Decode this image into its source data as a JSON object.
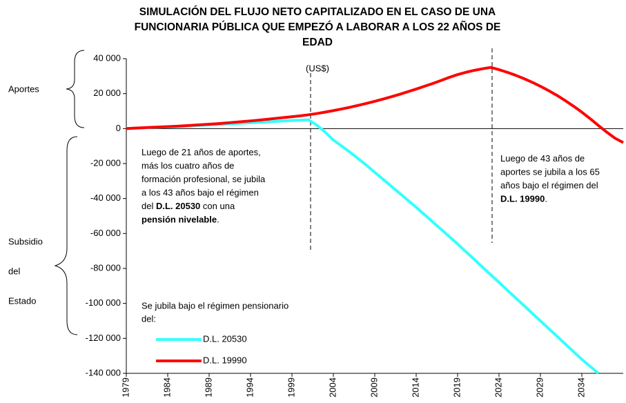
{
  "chart_data": {
    "type": "line",
    "title": [
      "SIMULACIÓN DEL FLUJO NETO CAPITALIZADO EN EL CASO DE UNA",
      "FUNCIONARIA PÚBLICA QUE EMPEZÓ A LABORAR A LOS 22 AÑOS DE",
      "EDAD"
    ],
    "subtitle": "(US$)",
    "side_labels": {
      "top": "Aportes",
      "bottom": [
        "Subsidio",
        "del",
        "Estado"
      ]
    },
    "x": [
      1979,
      1980,
      1981,
      1982,
      1983,
      1984,
      1985,
      1986,
      1987,
      1988,
      1989,
      1990,
      1991,
      1992,
      1993,
      1994,
      1995,
      1996,
      1997,
      1998,
      1999,
      2000,
      2001,
      2002,
      2003,
      2004,
      2005,
      2006,
      2007,
      2008,
      2009,
      2010,
      2011,
      2012,
      2013,
      2014,
      2015,
      2016,
      2017,
      2018,
      2019,
      2020,
      2021,
      2022,
      2023,
      2024,
      2025,
      2026,
      2027,
      2028,
      2029,
      2030,
      2031,
      2032,
      2033,
      2034,
      2035,
      2036,
      2037,
      2038,
      2039
    ],
    "series": [
      {
        "name": "D.L. 20530",
        "color": "#33ffff",
        "values": [
          0,
          200,
          400,
          600,
          800,
          1000,
          1200,
          1400,
          1600,
          1850,
          2100,
          2350,
          2600,
          2850,
          3100,
          3350,
          3600,
          3850,
          4100,
          4350,
          4600,
          4800,
          5000,
          2000,
          -2000,
          -6500,
          -10000,
          -13500,
          -17200,
          -21000,
          -25000,
          -29000,
          -33000,
          -37000,
          -41000,
          -45000,
          -49200,
          -53400,
          -57600,
          -61800,
          -66000,
          -70400,
          -74800,
          -79200,
          -83600,
          -88000,
          -92400,
          -96800,
          -101200,
          -105600,
          -110000,
          -114400,
          -118800,
          -123200,
          -127600,
          -132000,
          -136000,
          -140000,
          null,
          null,
          null
        ]
      },
      {
        "name": "D.L. 19990",
        "color": "#ff0000",
        "values": [
          0,
          300,
          500,
          700,
          900,
          1100,
          1300,
          1600,
          1900,
          2200,
          2500,
          2800,
          3200,
          3600,
          4000,
          4400,
          4800,
          5300,
          5800,
          6300,
          6800,
          7300,
          7900,
          8600,
          9400,
          10300,
          11200,
          12200,
          13300,
          14400,
          15600,
          16900,
          18200,
          19600,
          21100,
          22600,
          24200,
          25800,
          27500,
          29300,
          30900,
          32200,
          33300,
          34200,
          35000,
          33700,
          32200,
          30500,
          28600,
          26500,
          24200,
          21700,
          19000,
          16000,
          12800,
          9400,
          5700,
          1800,
          -2000,
          -5500,
          -8000
        ]
      }
    ],
    "xlim": [
      1979,
      2039
    ],
    "xticks": [
      1979,
      1984,
      1989,
      1994,
      1999,
      2004,
      2009,
      2014,
      2019,
      2024,
      2029,
      2034
    ],
    "ylim": [
      -140000,
      40000
    ],
    "yticks": [
      {
        "value": 40000,
        "label": "40 000"
      },
      {
        "value": 20000,
        "label": "20 000"
      },
      0,
      {
        "value": -20000,
        "label": "-20 000"
      },
      {
        "value": -40000,
        "label": "-40 000"
      },
      {
        "value": -60000,
        "label": "-60 000"
      },
      {
        "value": -80000,
        "label": "-80 000"
      },
      {
        "value": -100000,
        "label": "-100 000"
      },
      {
        "value": -120000,
        "label": "-120 000"
      },
      {
        "value": -140000,
        "label": "-140 000"
      }
    ],
    "legend_title": [
      "Se jubila bajo el régimen pensionario",
      "del:"
    ],
    "annotations": [
      [
        [
          {
            "text": "Luego de 21 años de aportes,"
          }
        ],
        [
          {
            "text": "más los cuatro años de"
          }
        ],
        [
          {
            "text": "formación profesional, se jubila"
          }
        ],
        [
          {
            "text": "a los 43 años bajo el régimen"
          }
        ],
        [
          {
            "text": "del "
          },
          {
            "text": "D.L. 20530",
            "bold": true
          },
          {
            "text": " con una"
          }
        ],
        [
          {
            "text": "pensión nivelable",
            "bold": true
          },
          {
            "text": "."
          }
        ]
      ],
      [
        [
          {
            "text": "Luego de 43 años de"
          }
        ],
        [
          {
            "text": "aportes se jubila a los 65"
          }
        ],
        [
          {
            "text": "años bajo el régimen del"
          }
        ],
        [
          {
            "text": "D.L. 19990",
            "bold": true
          },
          {
            "text": "."
          }
        ]
      ]
    ]
  }
}
